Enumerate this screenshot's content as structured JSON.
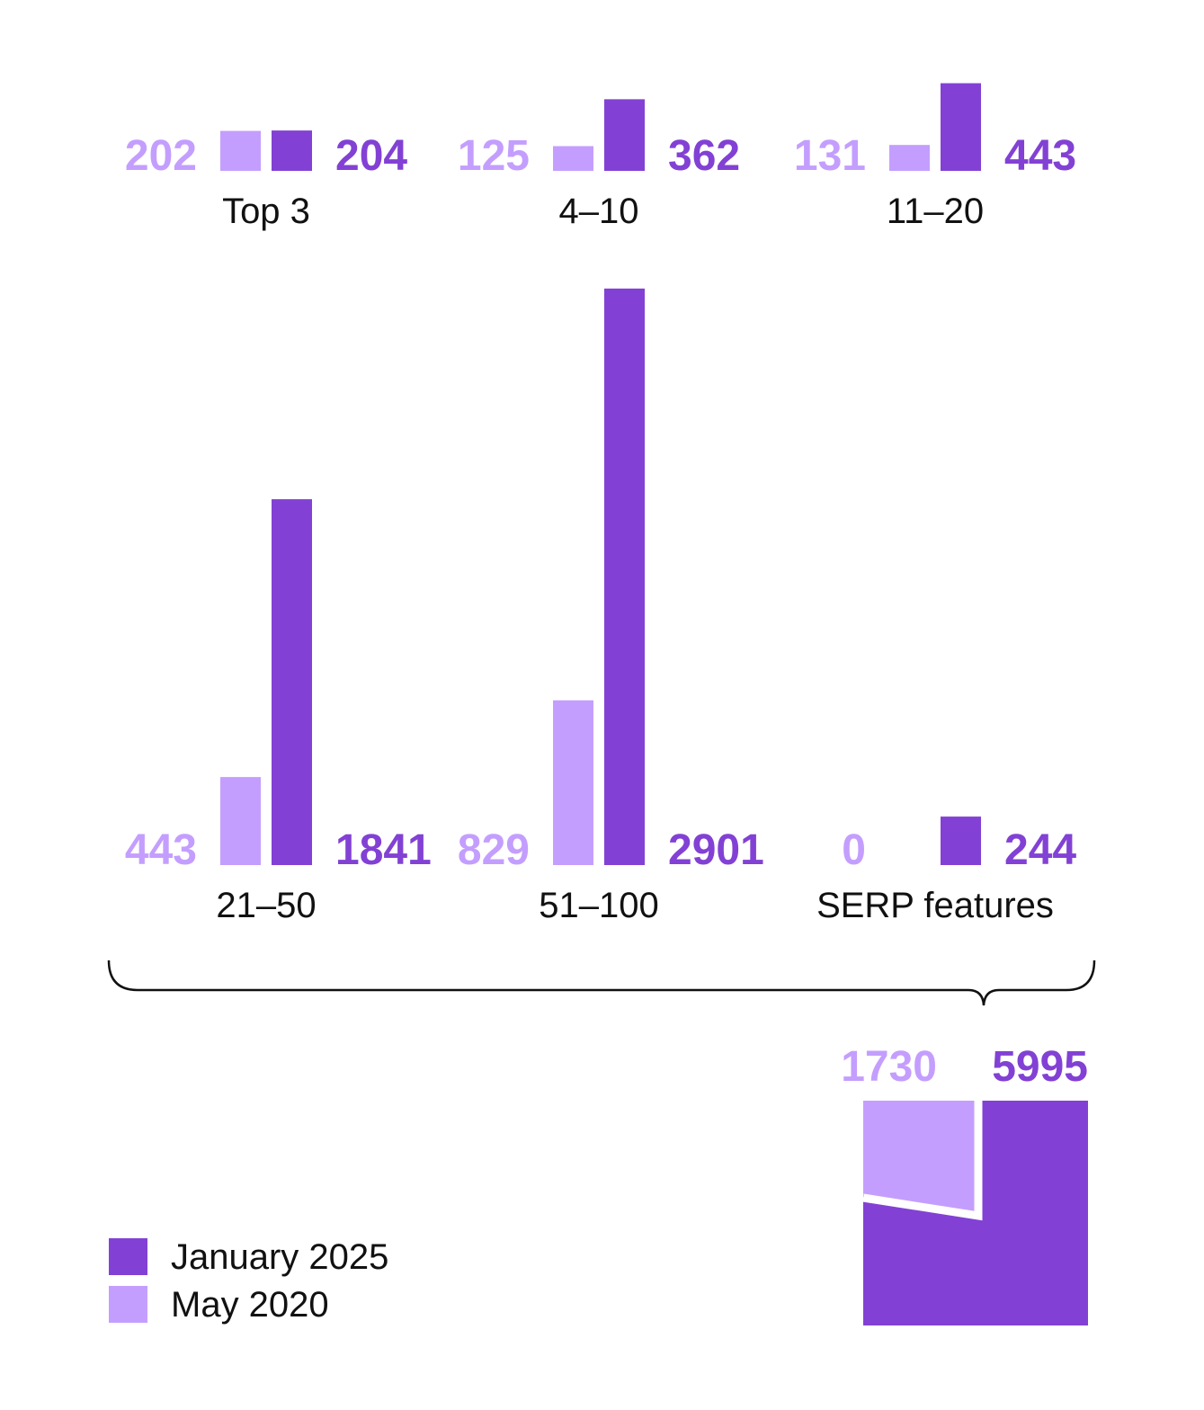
{
  "colors": {
    "dark": "#8241d4",
    "light": "#c49efe"
  },
  "chart_data": {
    "type": "bar",
    "categories": [
      "Top 3",
      "4–10",
      "11–20",
      "21–50",
      "51–100",
      "SERP features"
    ],
    "series": [
      {
        "name": "May 2020",
        "values": [
          202,
          125,
          131,
          443,
          829,
          0
        ]
      },
      {
        "name": "January 2025",
        "values": [
          204,
          362,
          443,
          1841,
          2901,
          244
        ]
      }
    ],
    "legend_position": "bottom-left",
    "grid": false,
    "totals": {
      "May 2020": 1730,
      "January 2025": 5995
    }
  }
}
